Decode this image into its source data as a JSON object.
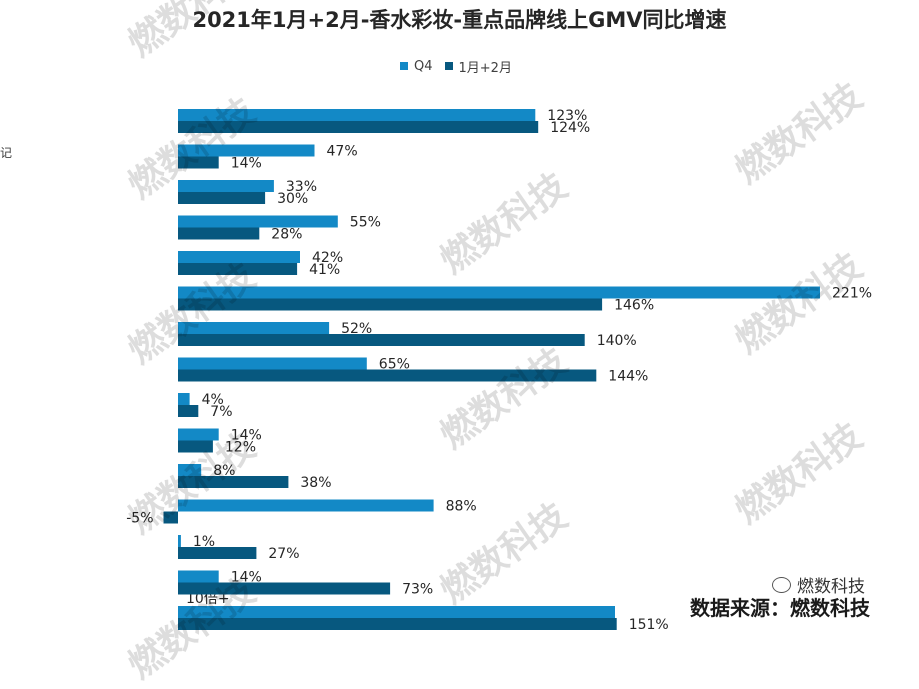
{
  "chart_data": {
    "type": "bar",
    "orientation": "horizontal",
    "title": "2021年1月+2月-香水彩妆-重点品牌线上GMV同比增速",
    "legend_position": "top",
    "categories": [
      "",
      "",
      "",
      "",
      "",
      "",
      "",
      "",
      "",
      "",
      "",
      "",
      "",
      "",
      ""
    ],
    "series": [
      {
        "name": "Q4",
        "color": "#1389C6",
        "values": [
          123,
          47,
          33,
          55,
          42,
          221,
          52,
          65,
          4,
          14,
          8,
          88,
          1,
          14,
          null
        ],
        "labels": [
          "123%",
          "47%",
          "33%",
          "55%",
          "42%",
          "221%",
          "52%",
          "65%",
          "4%",
          "14%",
          "8%",
          "88%",
          "1%",
          "14%",
          "10倍+"
        ]
      },
      {
        "name": "1月+2月",
        "color": "#07587F",
        "values": [
          124,
          14,
          30,
          28,
          41,
          146,
          140,
          144,
          7,
          12,
          38,
          -5,
          27,
          73,
          151
        ],
        "labels": [
          "124%",
          "14%",
          "30%",
          "28%",
          "41%",
          "146%",
          "140%",
          "144%",
          "7%",
          "12%",
          "38%",
          "-5%",
          "27%",
          "73%",
          "151%"
        ]
      }
    ],
    "grid": false,
    "xaxis_visible": false
  },
  "partial_category_label": "记",
  "watermark": "燃数科技",
  "source_note": "数据来源：燃数科技",
  "wechat_account": "燃数科技"
}
